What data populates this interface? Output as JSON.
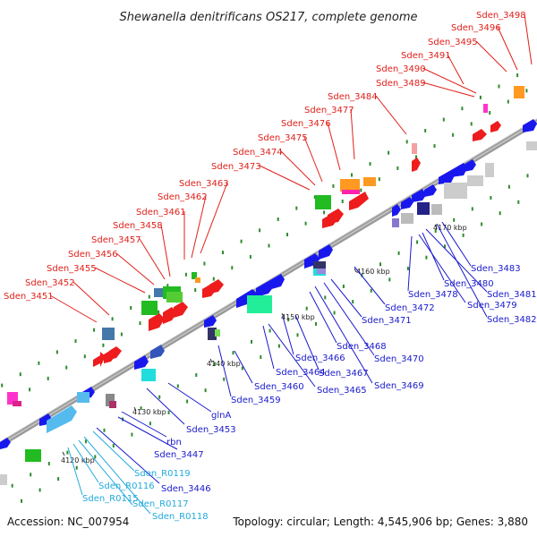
{
  "title": "Shewanella denitrificans OS217, complete genome",
  "footer": {
    "accession": "Accession: NC_007954",
    "summary": "Topology: circular; Length: 4,545,906 bp; Genes: 3,880"
  },
  "colors": {
    "upper_label": "#e0201a",
    "lower_label": "#1a1acc",
    "rna_label": "#22aadd",
    "backbone": "#999999",
    "marker": "#2e8b2e"
  },
  "ticks": [
    "4120 kbp",
    "4130 kbp",
    "4140 kbp",
    "4150 kbp",
    "4160 kbp",
    "4170 kbp"
  ],
  "upper_labels": [
    "Sden_3451",
    "Sden_3452",
    "Sden_3455",
    "Sden_3456",
    "Sden_3457",
    "Sden_3458",
    "Sden_3461",
    "Sden_3462",
    "Sden_3463",
    "Sden_3473",
    "Sden_3474",
    "Sden_3475",
    "Sden_3476",
    "Sden_3477",
    "Sden_3484",
    "Sden_3489",
    "Sden_3490",
    "Sden_3491",
    "Sden_3495",
    "Sden_3496",
    "Sden_3498"
  ],
  "lower_labels": [
    "Sden_3446",
    "Sden_3447",
    "rbn",
    "Sden_3453",
    "glnA",
    "Sden_3459",
    "Sden_3460",
    "Sden_3464",
    "Sden_3465",
    "Sden_3466",
    "Sden_3467",
    "Sden_3468",
    "Sden_3469",
    "Sden_3470",
    "Sden_3471",
    "Sden_3472",
    "Sden_3478",
    "Sden_3479",
    "Sden_3480",
    "Sden_3481",
    "Sden_3482",
    "Sden_3483"
  ],
  "rna_labels": [
    "Sden_R0115",
    "Sden_R0116",
    "Sden_R0117",
    "Sden_R0118",
    "Sden_R0119"
  ]
}
